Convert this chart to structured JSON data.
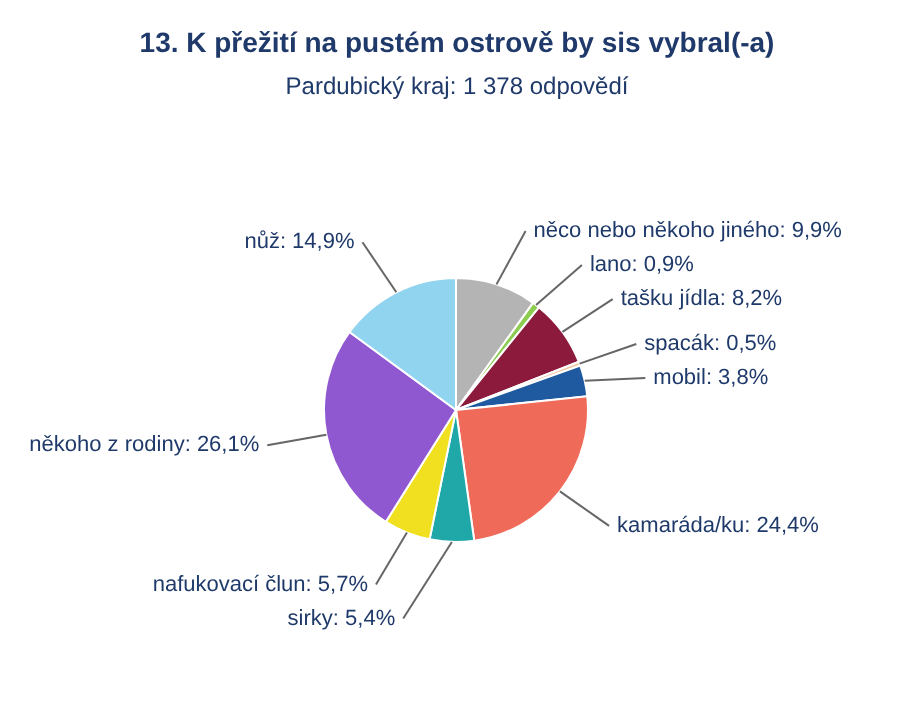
{
  "chart_data": {
    "type": "pie",
    "title": "13. K přežití na pustém ostrově by sis vybral(-a)",
    "subtitle": "Pardubický kraj: 1 378 odpovědí",
    "categories": [
      "něco nebo někoho jiného",
      "lano",
      "tašku jídla",
      "spacák",
      "mobil",
      "kamaráda/ku",
      "sirky",
      "nafukovací člun",
      "někoho z rodiny",
      "nůž"
    ],
    "values": [
      9.9,
      0.9,
      8.2,
      0.5,
      3.8,
      24.4,
      5.4,
      5.7,
      26.1,
      14.9
    ],
    "value_labels": [
      "9,9%",
      "0,9%",
      "8,2%",
      "0,5%",
      "3,8%",
      "24,4%",
      "5,4%",
      "5,7%",
      "26,1%",
      "14,9%"
    ],
    "colors": [
      "#b4b4b4",
      "#8ccc50",
      "#8c1a3c",
      "#f0c8a0",
      "#1f5aa0",
      "#f06a5a",
      "#20a8a8",
      "#f0e020",
      "#9058d0",
      "#90d4f0"
    ]
  }
}
